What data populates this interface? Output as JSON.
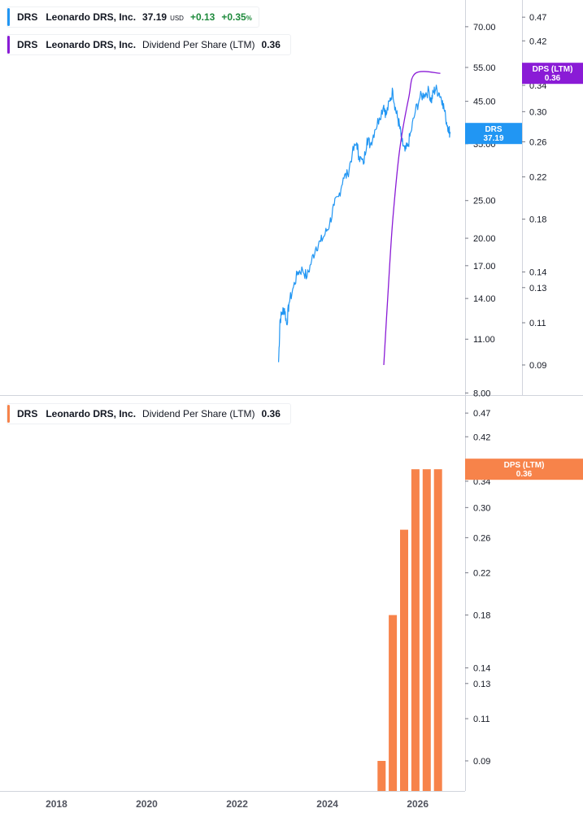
{
  "legends": {
    "price": {
      "ticker": "DRS",
      "name": "Leonardo DRS, Inc.",
      "value": "37.19",
      "currency": "USD",
      "change": "+0.13",
      "change_pct": "+0.35",
      "pct_sign": "%",
      "color": "#2196f3"
    },
    "dps_top": {
      "ticker": "DRS",
      "name": "Leonardo DRS, Inc.",
      "metric": "Dividend Per Share (LTM)",
      "value": "0.36",
      "color": "#8a1bd6"
    },
    "dps_bottom": {
      "ticker": "DRS",
      "name": "Leonardo DRS, Inc.",
      "metric": "Dividend Per Share (LTM)",
      "value": "0.36",
      "color": "#f7834a"
    }
  },
  "badges": {
    "price": {
      "label": "DRS",
      "value": "37.19",
      "color": "#2196f3"
    },
    "dps_top": {
      "label": "DPS (LTM)",
      "value": "0.36",
      "color": "#8a1bd6"
    },
    "dps_bottom": {
      "label": "DPS (LTM)",
      "value": "0.36",
      "color": "#f7834a"
    }
  },
  "chart_data": [
    {
      "type": "line",
      "scale": "log",
      "price_axis": {
        "ticks": [
          "70.00",
          "55.00",
          "45.00",
          "35.00",
          "25.00",
          "20.00",
          "17.00",
          "14.00",
          "11.00",
          "8.00"
        ],
        "range": [
          7.9,
          82
        ]
      },
      "dps_axis": {
        "ticks": [
          "0.47",
          "0.42",
          "0.34",
          "0.30",
          "0.26",
          "0.22",
          "0.18",
          "0.14",
          "0.13",
          "0.11",
          "0.09"
        ],
        "range": [
          0.078,
          0.51
        ]
      },
      "series": [
        {
          "values": "price",
          "color": "#2196f3",
          "points": [
            [
              2022.92,
              9.6
            ],
            [
              2022.95,
              12.3
            ],
            [
              2023.0,
              12.9
            ],
            [
              2023.05,
              13.2
            ],
            [
              2023.1,
              12.0
            ],
            [
              2023.15,
              13.6
            ],
            [
              2023.25,
              15.0
            ],
            [
              2023.35,
              16.4
            ],
            [
              2023.45,
              16.6
            ],
            [
              2023.55,
              15.9
            ],
            [
              2023.65,
              17.5
            ],
            [
              2023.75,
              19.0
            ],
            [
              2023.85,
              19.6
            ],
            [
              2023.95,
              20.5
            ],
            [
              2024.05,
              21.8
            ],
            [
              2024.15,
              24.3
            ],
            [
              2024.25,
              25.6
            ],
            [
              2024.35,
              28.6
            ],
            [
              2024.45,
              29.2
            ],
            [
              2024.55,
              33.0
            ],
            [
              2024.65,
              35.2
            ],
            [
              2024.7,
              32.5
            ],
            [
              2024.8,
              31.0
            ],
            [
              2024.88,
              36.2
            ],
            [
              2024.95,
              34.8
            ],
            [
              2025.05,
              38.0
            ],
            [
              2025.15,
              40.8
            ],
            [
              2025.25,
              44.0
            ],
            [
              2025.3,
              41.5
            ],
            [
              2025.38,
              45.0
            ],
            [
              2025.45,
              47.9
            ],
            [
              2025.5,
              43.5
            ],
            [
              2025.55,
              41.0
            ],
            [
              2025.6,
              38.8
            ],
            [
              2025.65,
              35.5
            ],
            [
              2025.72,
              33.5
            ],
            [
              2025.78,
              34.5
            ],
            [
              2025.85,
              37.5
            ],
            [
              2025.95,
              42.5
            ],
            [
              2026.05,
              46.0
            ],
            [
              2026.15,
              47.0
            ],
            [
              2026.25,
              47.8
            ],
            [
              2026.3,
              45.0
            ],
            [
              2026.35,
              47.6
            ],
            [
              2026.4,
              48.4
            ],
            [
              2026.48,
              47.2
            ],
            [
              2026.55,
              45.2
            ],
            [
              2026.62,
              40.8
            ],
            [
              2026.68,
              38.5
            ],
            [
              2026.72,
              37.19
            ]
          ]
        },
        {
          "values": "dps",
          "color": "#8a1bd6",
          "points": [
            [
              2025.25,
              0.09
            ],
            [
              2025.35,
              0.13
            ],
            [
              2025.45,
              0.18
            ],
            [
              2025.6,
              0.25
            ],
            [
              2025.8,
              0.32
            ],
            [
              2025.95,
              0.36
            ],
            [
              2026.5,
              0.36
            ]
          ]
        }
      ]
    },
    {
      "type": "bar",
      "scale": "log",
      "dps_axis": {
        "ticks": [
          "0.47",
          "0.42",
          "0.34",
          "0.30",
          "0.26",
          "0.22",
          "0.18",
          "0.14",
          "0.13",
          "0.11",
          "0.09"
        ],
        "range": [
          0.078,
          0.51
        ]
      },
      "x_axis": {
        "ticks": [
          "2018",
          "2020",
          "2022",
          "2024",
          "2026"
        ],
        "range": [
          2016.75,
          2027.05
        ]
      },
      "bars": {
        "color": "#f7834a",
        "x": [
          2025.2,
          2025.45,
          2025.7,
          2025.95,
          2026.2,
          2026.45
        ],
        "values": [
          0.09,
          0.18,
          0.27,
          0.36,
          0.36,
          0.36
        ]
      }
    }
  ]
}
